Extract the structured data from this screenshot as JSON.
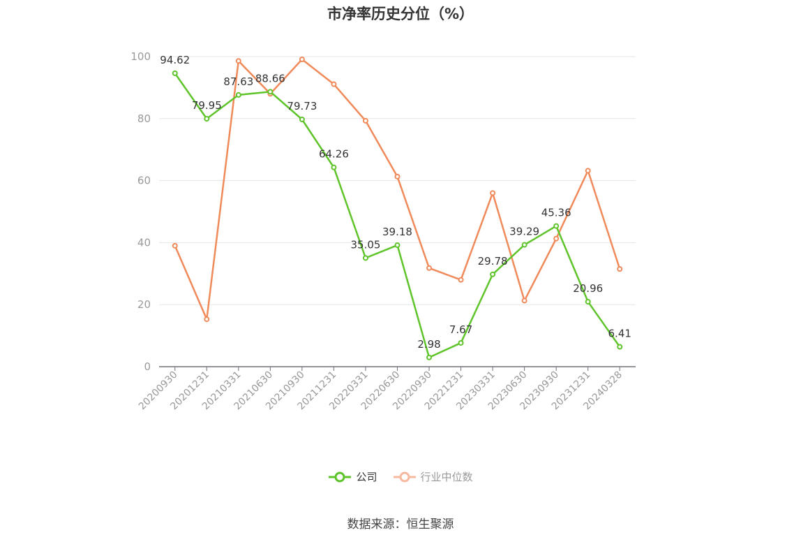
{
  "title": "市净率历史分位（%）",
  "source": "数据来源：恒生聚源",
  "chart_data": {
    "type": "line",
    "title": "市净率历史分位（%）",
    "categories": [
      "20200930",
      "20201231",
      "20210331",
      "20210630",
      "20210930",
      "20211231",
      "20220331",
      "20220630",
      "20220930",
      "20221231",
      "20230331",
      "20230630",
      "20230930",
      "20231231",
      "20240328"
    ],
    "ylim": [
      0,
      100
    ],
    "yticks": [
      0,
      20,
      40,
      60,
      80,
      100
    ],
    "grid": true,
    "legend_position": "bottom",
    "series": [
      {
        "name": "公司",
        "color": "#5ec42a",
        "show_labels": true,
        "values": [
          94.62,
          79.95,
          87.63,
          88.66,
          79.73,
          64.26,
          35.05,
          39.18,
          2.98,
          7.67,
          29.78,
          39.29,
          45.36,
          20.96,
          6.41
        ]
      },
      {
        "name": "行业中位数",
        "color": "#f08a5a",
        "legend_color": "#f7b8a0",
        "show_labels": false,
        "values": [
          39.0,
          15.3,
          98.6,
          88.0,
          99.1,
          91.1,
          79.3,
          61.3,
          31.8,
          28.0,
          56.0,
          21.3,
          41.3,
          63.2,
          31.5
        ]
      }
    ]
  }
}
